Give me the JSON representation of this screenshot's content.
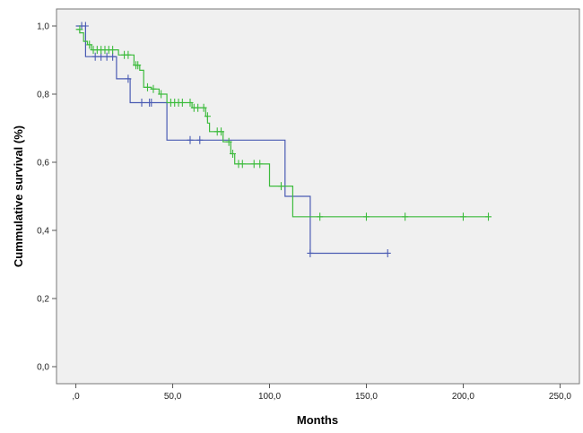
{
  "chart_data": {
    "type": "line",
    "subtype": "kaplan-meier step",
    "title": "",
    "xlabel": "Months",
    "ylabel": "Cummulative survival (%)",
    "xlim": [
      -10,
      260
    ],
    "ylim": [
      -0.05,
      1.05
    ],
    "x_ticks": [
      0,
      50,
      100,
      150,
      200,
      250
    ],
    "x_tick_labels": [
      ",0",
      "50,0",
      "100,0",
      "150,0",
      "200,0",
      "250,0"
    ],
    "y_ticks": [
      0,
      0.2,
      0.4,
      0.6,
      0.8,
      1.0
    ],
    "y_tick_labels": [
      "0,0",
      "0,2",
      "0,4",
      "0,6",
      "0,8",
      "1,0"
    ],
    "grid": false,
    "legend": "none",
    "background": "#f0f0f0",
    "series": [
      {
        "color": "#4a5bb3",
        "steps": [
          [
            0,
            1.0
          ],
          [
            5,
            0.91
          ],
          [
            21,
            0.845
          ],
          [
            28,
            0.775
          ],
          [
            47,
            0.665
          ],
          [
            108,
            0.5
          ],
          [
            121,
            0.333
          ],
          [
            161,
            0.333
          ]
        ],
        "censored": [
          [
            3,
            1.0
          ],
          [
            5,
            1.0
          ],
          [
            10,
            0.91
          ],
          [
            13,
            0.91
          ],
          [
            16,
            0.91
          ],
          [
            19,
            0.91
          ],
          [
            27,
            0.845
          ],
          [
            34,
            0.775
          ],
          [
            38,
            0.775
          ],
          [
            39,
            0.775
          ],
          [
            59,
            0.665
          ],
          [
            64,
            0.665
          ],
          [
            121,
            0.333
          ],
          [
            161,
            0.333
          ]
        ]
      },
      {
        "color": "#3dbb3d",
        "steps": [
          [
            0,
            0.99
          ],
          [
            2,
            0.98
          ],
          [
            4,
            0.955
          ],
          [
            6,
            0.945
          ],
          [
            8,
            0.93
          ],
          [
            22,
            0.915
          ],
          [
            30,
            0.885
          ],
          [
            33,
            0.87
          ],
          [
            35,
            0.82
          ],
          [
            39,
            0.815
          ],
          [
            43,
            0.8
          ],
          [
            47,
            0.775
          ],
          [
            60,
            0.76
          ],
          [
            67,
            0.735
          ],
          [
            68,
            0.715
          ],
          [
            69,
            0.69
          ],
          [
            76,
            0.66
          ],
          [
            80,
            0.625
          ],
          [
            82,
            0.595
          ],
          [
            100,
            0.53
          ],
          [
            110,
            0.53
          ],
          [
            112,
            0.44
          ],
          [
            213,
            0.44
          ]
        ],
        "censored": [
          [
            2,
            0.99
          ],
          [
            7,
            0.945
          ],
          [
            9,
            0.93
          ],
          [
            11,
            0.93
          ],
          [
            13,
            0.93
          ],
          [
            15,
            0.93
          ],
          [
            17,
            0.93
          ],
          [
            19,
            0.93
          ],
          [
            25,
            0.915
          ],
          [
            27,
            0.915
          ],
          [
            31,
            0.885
          ],
          [
            32,
            0.885
          ],
          [
            37,
            0.82
          ],
          [
            40,
            0.815
          ],
          [
            44,
            0.8
          ],
          [
            49,
            0.775
          ],
          [
            51,
            0.775
          ],
          [
            53,
            0.775
          ],
          [
            55,
            0.775
          ],
          [
            59,
            0.775
          ],
          [
            61,
            0.76
          ],
          [
            63,
            0.76
          ],
          [
            66,
            0.76
          ],
          [
            68,
            0.735
          ],
          [
            73,
            0.69
          ],
          [
            75,
            0.69
          ],
          [
            79,
            0.66
          ],
          [
            81,
            0.625
          ],
          [
            84,
            0.595
          ],
          [
            86,
            0.595
          ],
          [
            92,
            0.595
          ],
          [
            95,
            0.595
          ],
          [
            106,
            0.53
          ],
          [
            126,
            0.44
          ],
          [
            150,
            0.44
          ],
          [
            170,
            0.44
          ],
          [
            200,
            0.44
          ],
          [
            213,
            0.44
          ]
        ]
      }
    ]
  }
}
